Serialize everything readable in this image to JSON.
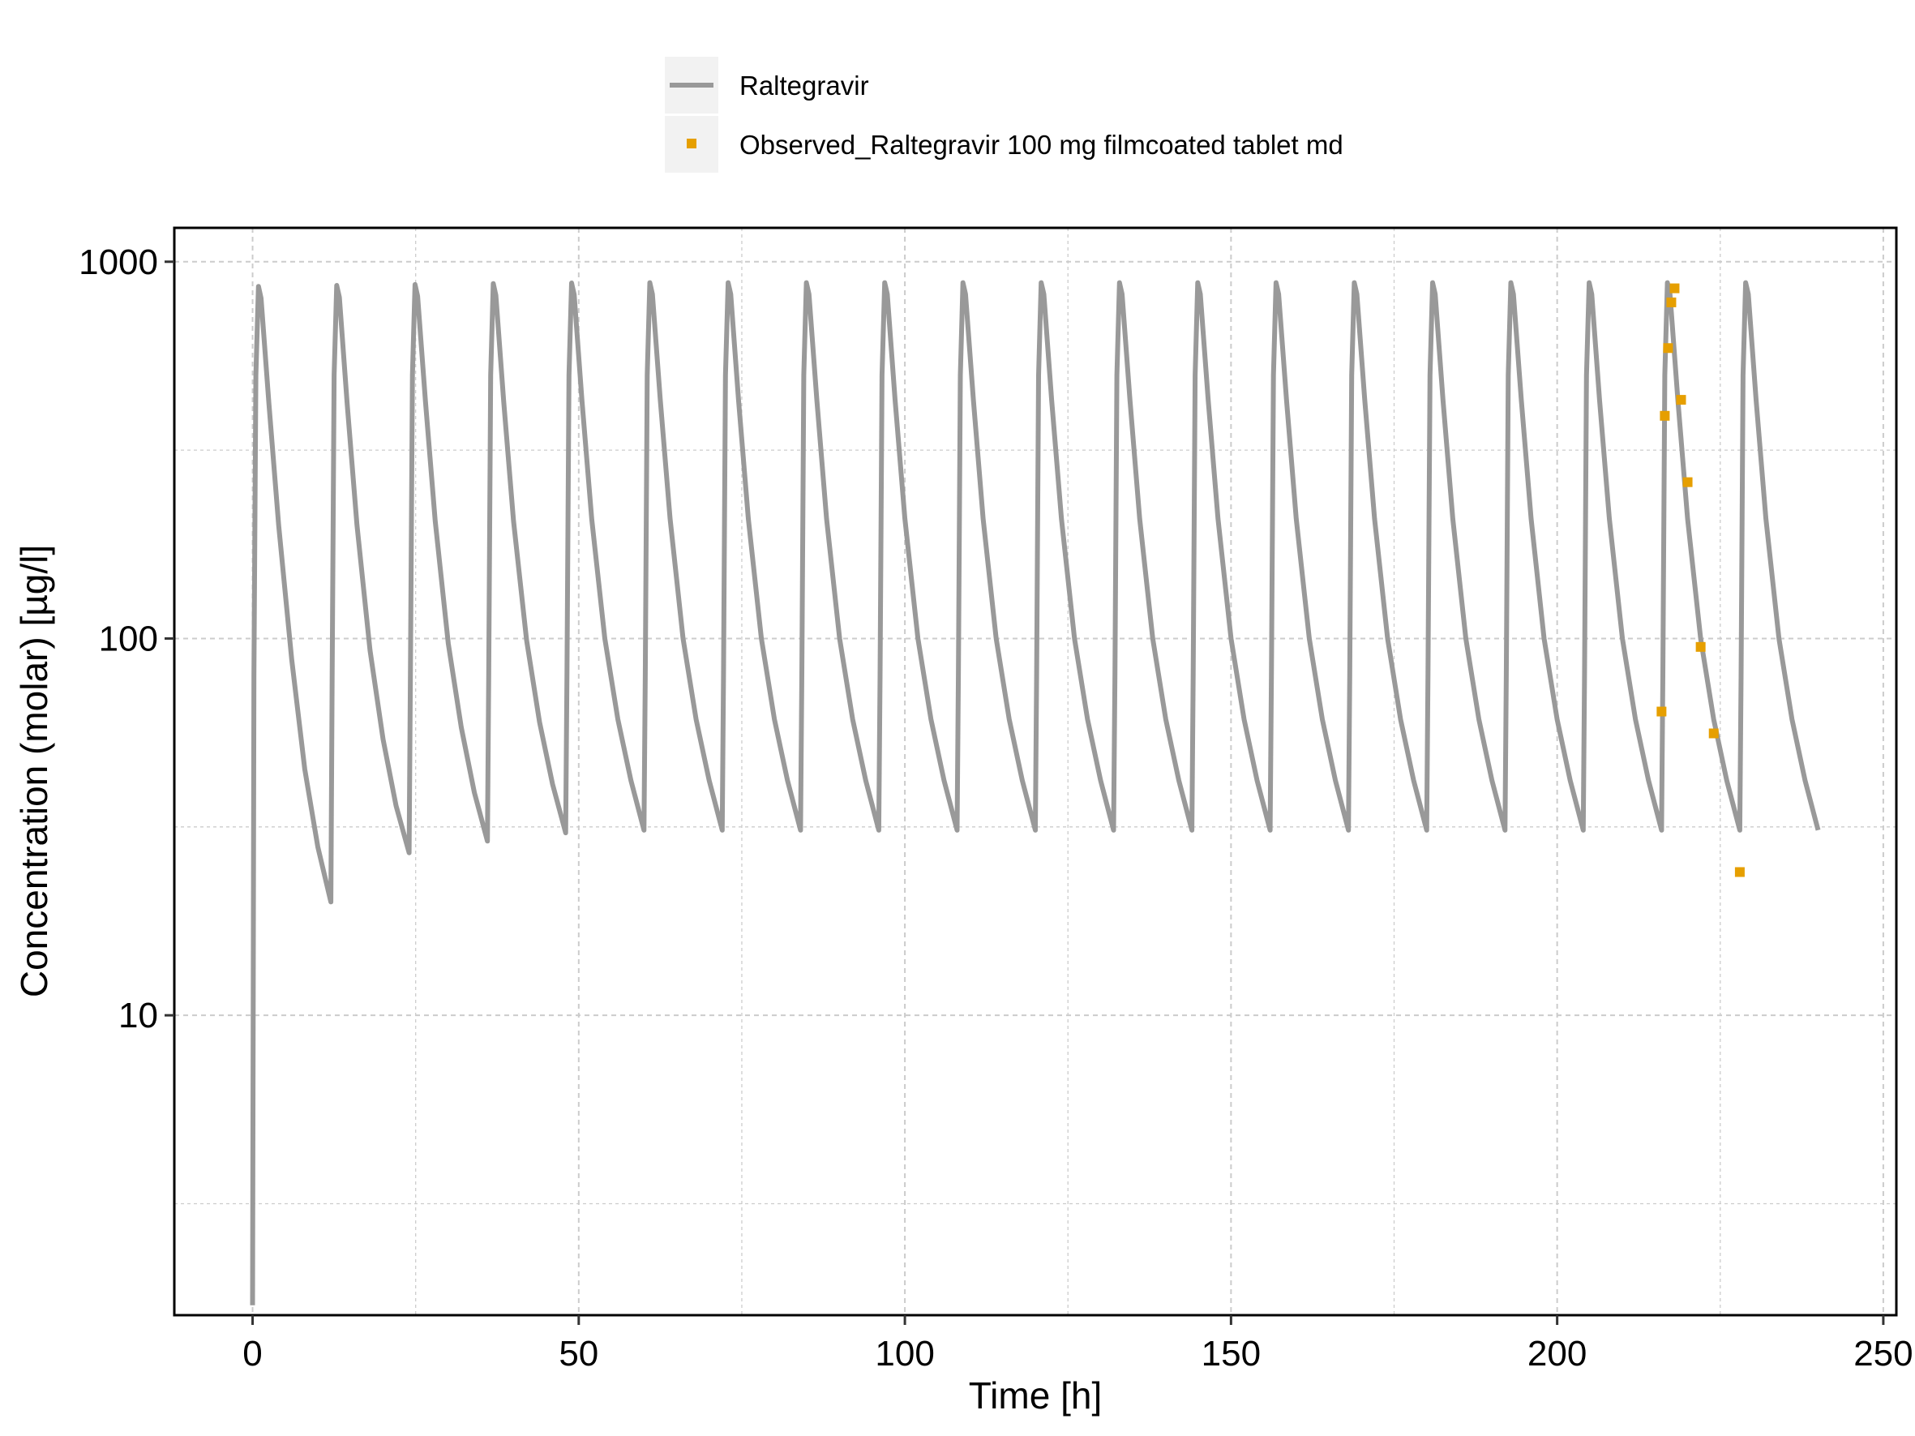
{
  "colors": {
    "simulated": "#999999",
    "observed": "#E69F00",
    "grid": "#cccccc",
    "legend_key_bg": "#f2f2f2"
  },
  "chart_data": {
    "type": "line",
    "title": "",
    "xlabel": "Time [h]",
    "ylabel": "Concentration (molar) [µg/l]",
    "xlim": [
      -12,
      252
    ],
    "ylim": [
      1.6,
      1230
    ],
    "y_scale": "log10",
    "x_ticks": [
      0,
      50,
      100,
      150,
      200,
      250
    ],
    "x_tick_labels": [
      "0",
      "50",
      "100",
      "150",
      "200",
      "250"
    ],
    "y_ticks": [
      10,
      100,
      1000
    ],
    "y_tick_labels": [
      "10",
      "100",
      "1000"
    ],
    "grid": true,
    "legend_position": "top",
    "series": [
      {
        "name": "Raltegravir",
        "kind": "line",
        "color": "#999999",
        "x": [
          0,
          0.2,
          0.5,
          0.9,
          1.3,
          2.5,
          4,
          6,
          8,
          10,
          12,
          12.2,
          12.5,
          12.9,
          13.3,
          14.5,
          16,
          18,
          20,
          22,
          24,
          24.2,
          24.5,
          24.9,
          25.3,
          26.5,
          28,
          30,
          32,
          34,
          36,
          36.2,
          36.5,
          36.9,
          37.3,
          38.5,
          40,
          42,
          44,
          46,
          48,
          48.2,
          48.5,
          48.9,
          49.3,
          50.5,
          52,
          54,
          56,
          58,
          60,
          60.2,
          60.5,
          60.9,
          61.3,
          62.5,
          64,
          66,
          68,
          70,
          72,
          72.2,
          72.5,
          72.9,
          73.3,
          74.5,
          76,
          78,
          80,
          82,
          84,
          84.2,
          84.5,
          84.9,
          85.3,
          86.5,
          88,
          90,
          92,
          94,
          96,
          96.2,
          96.5,
          96.9,
          97.3,
          98.5,
          100,
          102,
          104,
          106,
          108,
          108.2,
          108.5,
          108.9,
          109.3,
          110.5,
          112,
          114,
          116,
          118,
          120,
          120.2,
          120.5,
          120.9,
          121.3,
          122.5,
          124,
          126,
          128,
          130,
          132,
          132.2,
          132.5,
          132.9,
          133.3,
          134.5,
          136,
          138,
          140,
          142,
          144,
          144.2,
          144.5,
          144.9,
          145.3,
          146.5,
          148,
          150,
          152,
          154,
          156,
          156.2,
          156.5,
          156.9,
          157.3,
          158.5,
          160,
          162,
          164,
          166,
          168,
          168.2,
          168.5,
          168.9,
          169.3,
          170.5,
          172,
          174,
          176,
          178,
          180,
          180.2,
          180.5,
          180.9,
          181.3,
          182.5,
          184,
          186,
          188,
          190,
          192,
          192.2,
          192.5,
          192.9,
          193.3,
          194.5,
          196,
          198,
          200,
          202,
          204,
          204.2,
          204.5,
          204.9,
          205.3,
          206.5,
          208,
          210,
          212,
          214,
          216,
          216.2,
          216.5,
          216.9,
          217.3,
          218.5,
          220,
          222,
          224,
          226,
          228,
          228.2,
          228.5,
          228.9,
          229.3,
          230.5,
          232,
          234,
          236,
          238,
          240
        ],
        "y": [
          1.7,
          80,
          500,
          860,
          800,
          420,
          200,
          88,
          45,
          28,
          20,
          80,
          500,
          865,
          805,
          420,
          200,
          93,
          54,
          36,
          27,
          80,
          500,
          870,
          810,
          425,
          205,
          97,
          58,
          39,
          29,
          80,
          500,
          875,
          815,
          425,
          205,
          99,
          60,
          41,
          30.5,
          80,
          500,
          878,
          818,
          428,
          207,
          100,
          61,
          42,
          31,
          80,
          500,
          880,
          820,
          430,
          208,
          100,
          61,
          42,
          31,
          80,
          500,
          880,
          820,
          430,
          208,
          100,
          61,
          42,
          31,
          80,
          500,
          880,
          820,
          430,
          208,
          100,
          61,
          42,
          31,
          80,
          500,
          880,
          820,
          430,
          208,
          100,
          61,
          42,
          31,
          80,
          500,
          880,
          820,
          430,
          208,
          100,
          61,
          42,
          31,
          80,
          500,
          880,
          820,
          430,
          208,
          100,
          61,
          42,
          31,
          80,
          500,
          880,
          820,
          430,
          208,
          100,
          61,
          42,
          31,
          80,
          500,
          880,
          820,
          430,
          208,
          100,
          61,
          42,
          31,
          80,
          500,
          880,
          820,
          430,
          208,
          100,
          61,
          42,
          31,
          80,
          500,
          880,
          820,
          430,
          208,
          100,
          61,
          42,
          31,
          80,
          500,
          880,
          820,
          430,
          208,
          100,
          61,
          42,
          31,
          80,
          500,
          880,
          820,
          430,
          208,
          100,
          61,
          42,
          31,
          80,
          500,
          880,
          820,
          430,
          208,
          100,
          61,
          42,
          31,
          80,
          500,
          880,
          820,
          430,
          208,
          100,
          61,
          42,
          31,
          80,
          500,
          880,
          820,
          430,
          208,
          100,
          61,
          42,
          31
        ]
      },
      {
        "name": "Observed_Raltegravir 100 mg filmcoated tablet md",
        "kind": "scatter",
        "color": "#E69F00",
        "x": [
          216,
          216.5,
          217,
          217.5,
          218,
          219,
          220,
          222,
          224,
          228
        ],
        "y": [
          64,
          390,
          590,
          780,
          850,
          430,
          260,
          95,
          56,
          24
        ]
      }
    ]
  }
}
